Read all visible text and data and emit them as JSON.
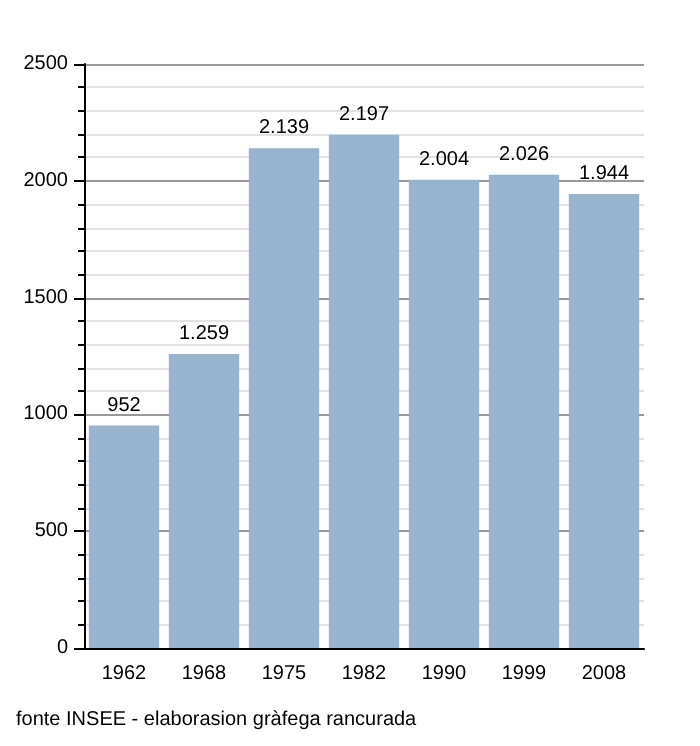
{
  "chart_data": {
    "type": "bar",
    "categories": [
      "1962",
      "1968",
      "1975",
      "1982",
      "1990",
      "1999",
      "2008"
    ],
    "values": [
      952,
      1259,
      2139,
      2197,
      2004,
      2026,
      1944
    ],
    "value_labels": [
      "952",
      "1.259",
      "2.139",
      "2.197",
      "2.004",
      "2.026",
      "1.944"
    ],
    "color": "#9ab3cd",
    "ylim": [
      0,
      2500
    ],
    "yticks": [
      0,
      500,
      1000,
      1500,
      2000,
      2500
    ],
    "grid": "y",
    "annotations": [
      "fonte INSEE - elaborasion gràfega rancurada"
    ]
  }
}
